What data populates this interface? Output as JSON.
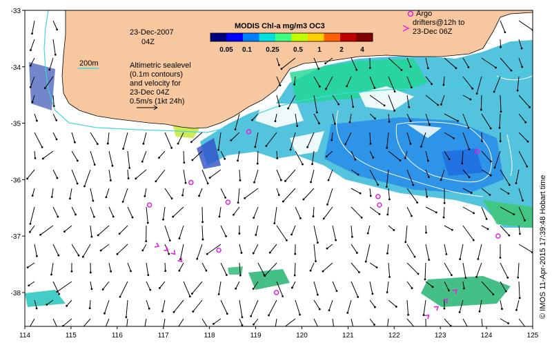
{
  "map": {
    "date_line1": "23-Dec-2007",
    "date_line2": "04Z",
    "isobath_label": "200m",
    "velocity_note": [
      "Altimetric sealevel",
      "(0.1m contours)",
      "and velocity for",
      "23-Dec 04Z",
      "0.5m/s (1kt 24h)"
    ],
    "argo_note": [
      "Argo",
      "drifters@12h to",
      "23-Dec 06Z"
    ],
    "credit": "© IMOS 11-Apr-2015 17:39:48 Hobart time",
    "colors": {
      "land": "#f7c8a0",
      "isobath": "#3fd8e0",
      "argo": "#e020e0",
      "ssh_contour": "#ffffff",
      "arrow": "#000000"
    }
  },
  "colorbar": {
    "title": "MODIS Chl-a mg/m3 OC3",
    "labels": [
      "0.05",
      "0.1",
      "0.25",
      "0.5",
      "1",
      "2",
      "4"
    ],
    "colors": [
      "#00007f",
      "#0000ff",
      "#0080ff",
      "#00e0e0",
      "#40ff80",
      "#c0ff00",
      "#ffd000",
      "#ff6000",
      "#c00000",
      "#800000"
    ]
  },
  "chart_data": {
    "type": "map",
    "x_ticks": [
      114,
      115,
      116,
      117,
      118,
      119,
      120,
      121,
      122,
      123,
      124,
      125
    ],
    "y_ticks": [
      -33,
      -34,
      -35,
      -36,
      -37,
      -38
    ],
    "lon_range": [
      114,
      125
    ],
    "lat_range": [
      -38.6,
      -33
    ],
    "argo_floats": [
      {
        "lon": 118.85,
        "lat": -35.15
      },
      {
        "lon": 117.6,
        "lat": -36.05
      },
      {
        "lon": 116.7,
        "lat": -36.45
      },
      {
        "lon": 118.4,
        "lat": -36.4
      },
      {
        "lon": 121.65,
        "lat": -36.3
      },
      {
        "lon": 121.68,
        "lat": -36.45
      },
      {
        "lon": 123.8,
        "lat": -35.5
      },
      {
        "lon": 124.25,
        "lat": -37.0
      },
      {
        "lon": 118.2,
        "lat": -37.25
      },
      {
        "lon": 119.45,
        "lat": -38.0
      }
    ],
    "drifter_tracks": [
      {
        "lon": [
          116.9,
          117.1,
          117.25,
          117.4
        ],
        "lat": [
          -37.18,
          -37.25,
          -37.32,
          -37.45
        ]
      },
      {
        "lon": [
          122.75,
          122.95,
          123.15,
          123.35
        ],
        "lat": [
          -38.4,
          -38.25,
          -38.12,
          -37.95
        ]
      }
    ]
  }
}
